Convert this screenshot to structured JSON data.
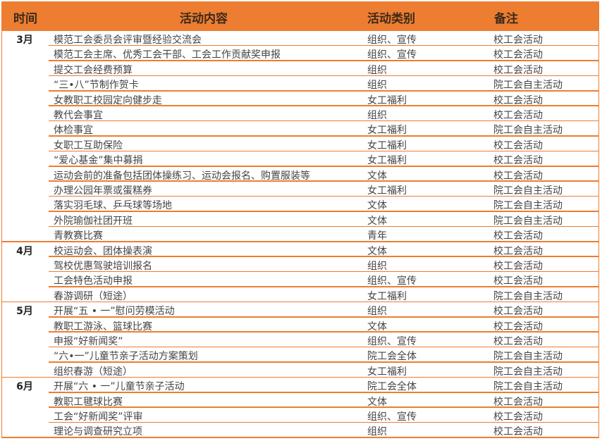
{
  "header": {
    "time": "时间",
    "content": "活动内容",
    "category": "活动类别",
    "note": "备注"
  },
  "colors": {
    "accent": "#ED7D31"
  },
  "months": [
    {
      "label": "3月",
      "rows": [
        [
          "模范工会委员会评审暨经验交流会",
          "组织、宣传",
          "校工会活动"
        ],
        [
          "模范工会主席、优秀工会干部、工会工作贡献奖申报",
          "组织、宣传",
          "校工会活动"
        ],
        [
          "提交工会经费预算",
          "组织",
          "校工会活动"
        ],
        [
          "“三•八”节制作贺卡",
          "组织",
          "院工会自主活动"
        ],
        [
          "女教职工校园定向健步走",
          "女工福利",
          "校工会活动"
        ],
        [
          "教代会事宜",
          "组织",
          "校工会活动"
        ],
        [
          "体检事宜",
          "女工福利",
          "院工会自主活动"
        ],
        [
          "女职工互助保险",
          "女工福利",
          "校工会活动"
        ],
        [
          "“爱心基金”集中募捐",
          "女工福利",
          "校工会活动"
        ],
        [
          "运动会前的准备包括团体操练习、运动会报名、购置服装等",
          "文体",
          "校工会活动"
        ],
        [
          "办理公园年票或蛋糕券",
          "女工福利",
          "院工会自主活动"
        ],
        [
          "落实羽毛球、乒乓球等场地",
          "文体",
          "院工会自主活动"
        ],
        [
          "外院瑜伽社团开班",
          "文体",
          "院工会自主活动"
        ],
        [
          "青教赛比赛",
          "青年",
          "校工会活动"
        ]
      ]
    },
    {
      "label": "4月",
      "rows": [
        [
          "校运动会、团体操表演",
          "文体",
          "校工会活动"
        ],
        [
          "驾校优惠驾驶培训报名",
          "组织",
          "校工会活动"
        ],
        [
          "工会特色活动申报",
          "组织、宣传",
          "校工会活动"
        ],
        [
          "春游调研（短途）",
          "女工福利",
          "院工会自主活动"
        ]
      ]
    },
    {
      "label": "5月",
      "rows": [
        [
          "开展“五 • 一”慰问劳模活动",
          "组织",
          "校工会活动"
        ],
        [
          "教职工游泳、篮球比赛",
          "文体",
          "校工会活动"
        ],
        [
          "申报“好新闻奖”",
          "组织、宣传",
          "校工会活动"
        ],
        [
          "“六•一”儿童节亲子活动方案策划",
          "院工会全体",
          "院工会自主活动"
        ],
        [
          "组织春游（短途）",
          "女工福利",
          "院工会自主活动"
        ]
      ]
    },
    {
      "label": "6月",
      "rows": [
        [
          "开展“六 • 一”儿童节亲子活动",
          "院工会全体",
          "院工会自主活动"
        ],
        [
          "教职工毽球比赛",
          "文体",
          "校工会活动"
        ],
        [
          "工会“好新闻奖”评审",
          "组织、宣传",
          "校工会活动"
        ],
        [
          "理论与调查研究立项",
          "组织",
          "校工会活动"
        ]
      ]
    }
  ]
}
